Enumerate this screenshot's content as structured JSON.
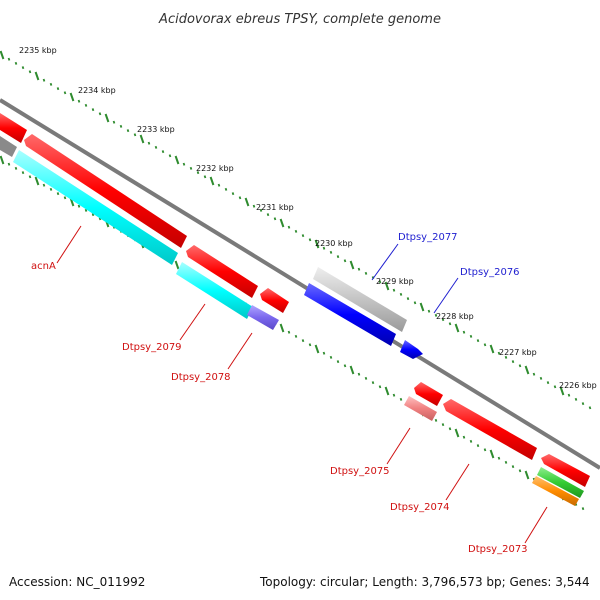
{
  "title": "Acidovorax ebreus TPSY, complete genome",
  "footer": {
    "accession": "Accession: NC_011992",
    "summary": "Topology: circular; Length: 3,796,573 bp; Genes: 3,544"
  },
  "colors": {
    "backbone": "#7a7a7a",
    "tick": "#2e8b2e",
    "forward_label": "#1f1fd0",
    "reverse_label": "#d01010",
    "red": "#ff0000",
    "cyan": "#00ffff",
    "blue": "#0000ff",
    "gray_feature": "#bdbdbd",
    "purple": "#7b68ee",
    "pink": "#f08080",
    "green": "#33cc33",
    "orange": "#ff8c00"
  },
  "scale_labels": [
    "2235 kbp",
    "2234 kbp",
    "2233 kbp",
    "2232 kbp",
    "2231 kbp",
    "2230 kbp",
    "2229 kbp",
    "2228 kbp",
    "2227 kbp",
    "2226 kbp"
  ],
  "gene_labels": [
    {
      "text": "Dtpsy_2077",
      "strand": "forward"
    },
    {
      "text": "Dtpsy_2076",
      "strand": "forward"
    },
    {
      "text": "acnA",
      "strand": "reverse"
    },
    {
      "text": "Dtpsy_2079",
      "strand": "reverse"
    },
    {
      "text": "Dtpsy_2078",
      "strand": "reverse"
    },
    {
      "text": "Dtpsy_2075",
      "strand": "reverse"
    },
    {
      "text": "Dtpsy_2074",
      "strand": "reverse"
    },
    {
      "text": "Dtpsy_2073",
      "strand": "reverse"
    }
  ]
}
